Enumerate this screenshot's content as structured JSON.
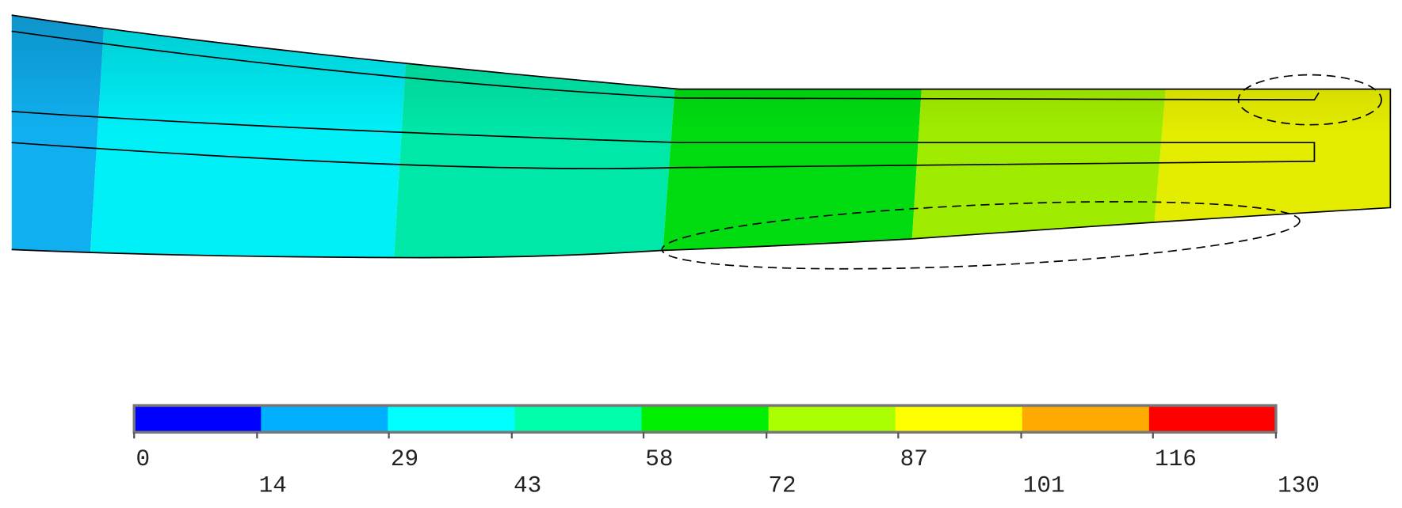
{
  "legend": {
    "ticks": [
      0,
      14,
      29,
      43,
      58,
      72,
      87,
      101,
      116,
      130
    ],
    "colors": [
      "#0000ff",
      "#00b0ff",
      "#00ffff",
      "#00ffaa",
      "#00ee00",
      "#aaff00",
      "#ffff00",
      "#ffaa00",
      "#ff0000"
    ]
  }
}
